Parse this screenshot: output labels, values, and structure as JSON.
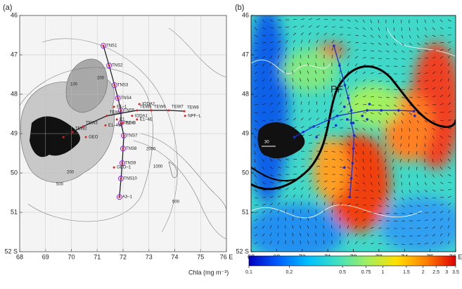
{
  "panels": [
    {
      "label": "(a)",
      "contour_labels": [
        100,
        200,
        200,
        500,
        500,
        1000,
        2000
      ]
    },
    {
      "label": "(b)",
      "front_label": "PF",
      "scale_label": "30"
    }
  ],
  "xlim": [
    68,
    76
  ],
  "ylim": [
    46,
    52
  ],
  "xticks": [
    68,
    69,
    70,
    71,
    72,
    73,
    74,
    75,
    {
      "value": 76,
      "label": "76 E"
    }
  ],
  "yticks": [
    46,
    47,
    48,
    49,
    50,
    51,
    {
      "value": 52,
      "label": "52 S"
    }
  ],
  "stations": [
    {
      "name": "TNS1",
      "lon": 71.24,
      "lat": 46.77
    },
    {
      "name": "TNS2",
      "lon": 71.46,
      "lat": 47.27
    },
    {
      "name": "TNS3",
      "lon": 71.67,
      "lat": 47.77
    },
    {
      "name": "TNS4",
      "lon": 71.8,
      "lat": 48.1
    },
    {
      "name": "TNS5",
      "lon": 71.92,
      "lat": 48.41
    },
    {
      "name": "TNS6",
      "lon": 71.92,
      "lat": 48.73
    },
    {
      "name": "TNS7",
      "lon": 72.03,
      "lat": 49.05
    },
    {
      "name": "TNS8",
      "lon": 72.0,
      "lat": 49.38
    },
    {
      "name": "TNS9",
      "lon": 71.97,
      "lat": 49.75
    },
    {
      "name": "TNS10",
      "lon": 71.92,
      "lat": 50.14
    },
    {
      "name": "A3–1",
      "lon": 71.86,
      "lat": 50.61
    },
    {
      "name": "TEW1",
      "lon": 69.69,
      "lat": 49.09
    },
    {
      "name": "TEW2",
      "lon": 70.04,
      "lat": 48.96
    },
    {
      "name": "TEW3",
      "lon": 70.45,
      "lat": 48.82
    },
    {
      "name": "TEW4",
      "lon": 71.37,
      "lat": 48.55
    },
    {
      "name": "TEW5",
      "lon": 72.54,
      "lat": 48.41
    },
    {
      "name": "TEW6",
      "lon": 73.09,
      "lat": 48.41
    },
    {
      "name": "TEW7",
      "lon": 73.77,
      "lat": 48.41
    },
    {
      "name": "TEW8",
      "lon": 74.37,
      "lat": 48.43
    },
    {
      "name": "GEO",
      "lon": 70.56,
      "lat": 49.09
    },
    {
      "name": "E1–1",
      "lon": 71.65,
      "lat": 48.32
    },
    {
      "name": "E1",
      "lon": 71.76,
      "lat": 48.64
    },
    {
      "name": "E1–4W",
      "lon": 71.32,
      "lat": 48.79
    },
    {
      "name": "E1–3",
      "lon": 72.0,
      "lat": 48.73
    },
    {
      "name": "E1–4E",
      "lon": 72.54,
      "lat": 48.64
    },
    {
      "name": "IODA1",
      "lon": 72.35,
      "lat": 48.55
    },
    {
      "name": "IODA2",
      "lon": 72.63,
      "lat": 48.25
    },
    {
      "name": "GEO–1",
      "lon": 71.65,
      "lat": 49.86
    },
    {
      "name": "NPF–L",
      "lon": 74.4,
      "lat": 48.55
    }
  ],
  "colorbar": {
    "label": "Chla (mg m⁻³)",
    "lim": [
      0.1,
      3.5
    ],
    "log": true,
    "colors": [
      "#0000c0",
      "#0060ff",
      "#00c0ff",
      "#40e0c0",
      "#a0f060",
      "#ffe000",
      "#ff8000",
      "#e00000"
    ],
    "ticks": [
      0.1,
      0.2,
      0.5,
      0.75,
      1,
      1.5,
      2,
      2.5,
      3,
      3.5
    ]
  }
}
